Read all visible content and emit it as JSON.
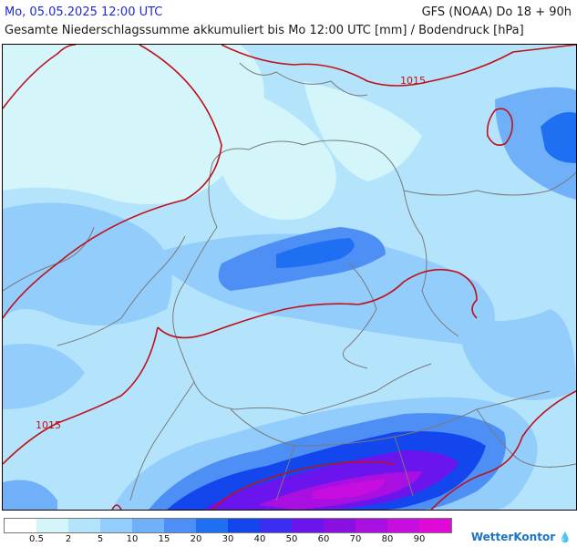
{
  "header": {
    "datetime": "Mo, 05.05.2025 12:00 UTC",
    "model": "GFS (NOAA) Do 18 + 90h",
    "description": "Gesamte Niederschlagssumme akkumuliert bis Mo 12:00 UTC [mm] / Bodendruck [hPa]"
  },
  "map": {
    "isobar_labels": [
      "1015",
      "1015"
    ],
    "isobar_color": "#c0101a",
    "border_color": "#7a7a7a"
  },
  "legend": {
    "colors": [
      "#ffffff",
      "#d4f6fb",
      "#b4e4fb",
      "#93cdfb",
      "#6fb0f8",
      "#4e8ff5",
      "#1f6ff3",
      "#1446ee",
      "#3c2ef0",
      "#6a14ee",
      "#8a10e2",
      "#a80fe0",
      "#c80de0",
      "#e00ad8"
    ],
    "labels": [
      "0.5",
      "2",
      "5",
      "10",
      "15",
      "20",
      "30",
      "40",
      "50",
      "60",
      "70",
      "80",
      "90"
    ]
  },
  "brand": {
    "name": "WetterKontor",
    "mark": "💧"
  }
}
